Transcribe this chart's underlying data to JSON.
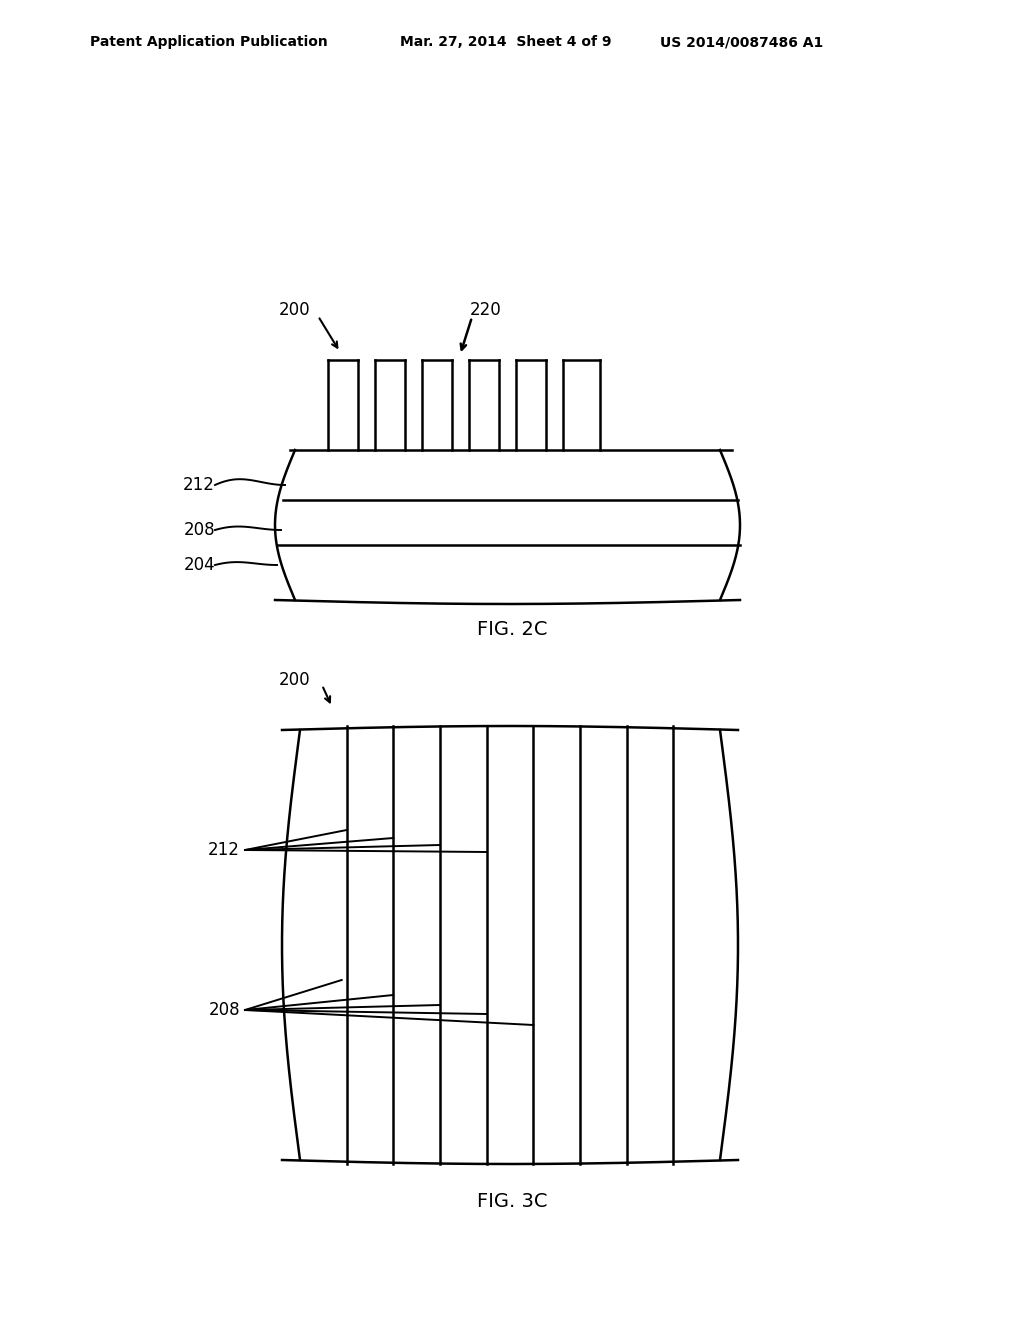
{
  "background_color": "#ffffff",
  "header_left": "Patent Application Publication",
  "header_mid": "Mar. 27, 2014  Sheet 4 of 9",
  "header_right": "US 2014/0087486 A1",
  "fig2c_label": "FIG. 2C",
  "fig3c_label": "FIG. 3C",
  "line_color": "#000000",
  "line_width": 1.8
}
